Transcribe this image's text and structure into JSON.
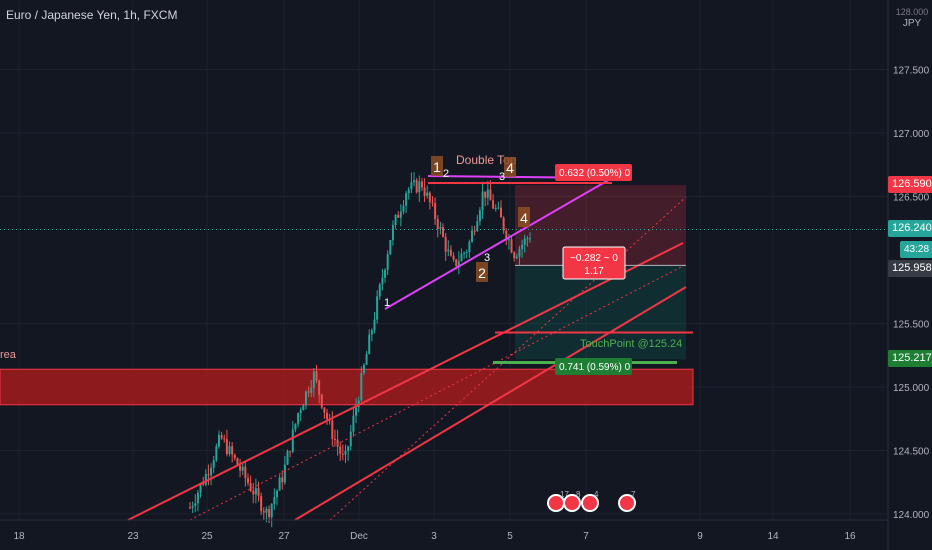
{
  "header": {
    "symbol_title": "Euro / Japanese Yen, 1h, FXCM",
    "currency": "JPY",
    "top_price_partial": "128.000"
  },
  "colors": {
    "background": "#131722",
    "grid": "#1e222d",
    "candle_up": "#26a69a",
    "candle_down": "#ef5350",
    "channel": "#f23645",
    "wedge": "#e040fb",
    "zone": "#b71c1c",
    "target": "#4caf50"
  },
  "price_tags": {
    "resistance": "126.590",
    "current": "126.240",
    "countdown": "43:28",
    "bid": "125.958",
    "target": "125.217"
  },
  "annotations": {
    "pattern_label": "Double Top",
    "area_label": "rea",
    "touch_point": "TouchPoint @125.24",
    "risk_label": "0.632 (0.50%) 0",
    "reward_label": "0.741 (0.59%) 0",
    "pnl_line1": "−0.282 ~ 0",
    "pnl_line2": "1.17",
    "wave_labels": [
      "1",
      "2",
      "4",
      "3",
      "4",
      "1",
      "3",
      "2"
    ]
  },
  "event_markers": [
    "17",
    "8",
    "4",
    "7"
  ],
  "chart_data": {
    "type": "candlestick",
    "title": "Euro / Japanese Yen, 1h, FXCM",
    "y_ticks": [
      "127.500",
      "127.000",
      "126.500",
      "125.500",
      "125.000",
      "124.500",
      "124.000"
    ],
    "x_ticks": [
      "18",
      "23",
      "25",
      "27",
      "Dec",
      "3",
      "5",
      "7",
      "9",
      "14",
      "16"
    ],
    "ylim": [
      124.0,
      128.0
    ],
    "series": [
      {
        "name": "price",
        "values": [
          124.05,
          124.3,
          124.6,
          124.4,
          124.2,
          124.0,
          124.3,
          124.8,
          125.1,
          124.7,
          124.4,
          125.0,
          125.6,
          126.2,
          126.55,
          126.6,
          126.3,
          125.95,
          126.1,
          126.55,
          126.35,
          126.05,
          126.2
        ]
      }
    ],
    "levels": {
      "double_top": 126.59,
      "current": 126.24,
      "bid": 125.958,
      "touch_point": 125.24,
      "target": 125.217,
      "supply_zone": [
        124.86,
        125.14
      ]
    }
  }
}
